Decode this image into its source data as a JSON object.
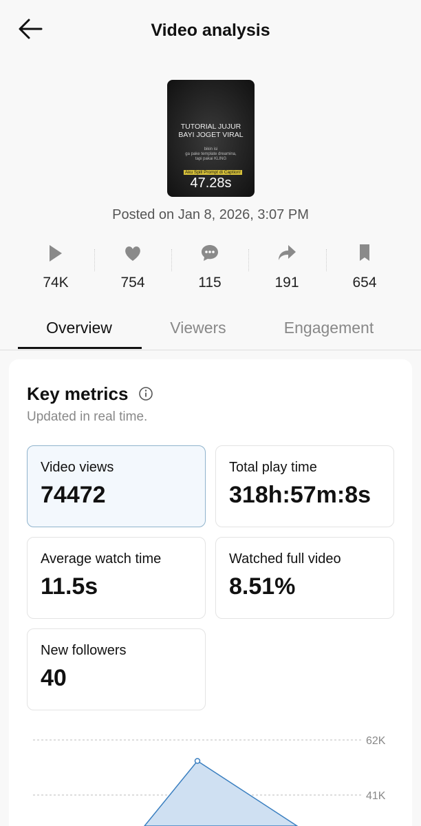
{
  "header": {
    "title": "Video analysis"
  },
  "video": {
    "thumbnail": {
      "lines": [
        "TUTORIAL JUJUR",
        "BAYI JOGET VIRAL"
      ],
      "caption": [
        "bikin isi",
        "ga pake template dreamina,",
        "tapi pakai KLING"
      ],
      "banner": "Aku Spill Prompt di Caption!",
      "duration": "47.28s"
    },
    "posted": "Posted on Jan 8, 2026, 3:07 PM"
  },
  "stats": [
    "74K",
    "754",
    "115",
    "191",
    "654"
  ],
  "tabs": [
    "Overview",
    "Viewers",
    "Engagement"
  ],
  "key_metrics": {
    "title": "Key metrics",
    "subtitle": "Updated in real time.",
    "items": [
      {
        "label": "Video views",
        "value": "74472"
      },
      {
        "label": "Total play time",
        "value": "318h:57m:8s"
      },
      {
        "label": "Average watch time",
        "value": "11.5s"
      },
      {
        "label": "Watched full video",
        "value": "8.51%"
      },
      {
        "label": "New followers",
        "value": "40"
      }
    ]
  },
  "chart": {
    "type": "area",
    "yticks": [
      {
        "value": 62000,
        "label": "62K"
      },
      {
        "value": 41000,
        "label": "41K"
      }
    ],
    "values": [
      54000
    ],
    "color": "#3a7fc0"
  }
}
